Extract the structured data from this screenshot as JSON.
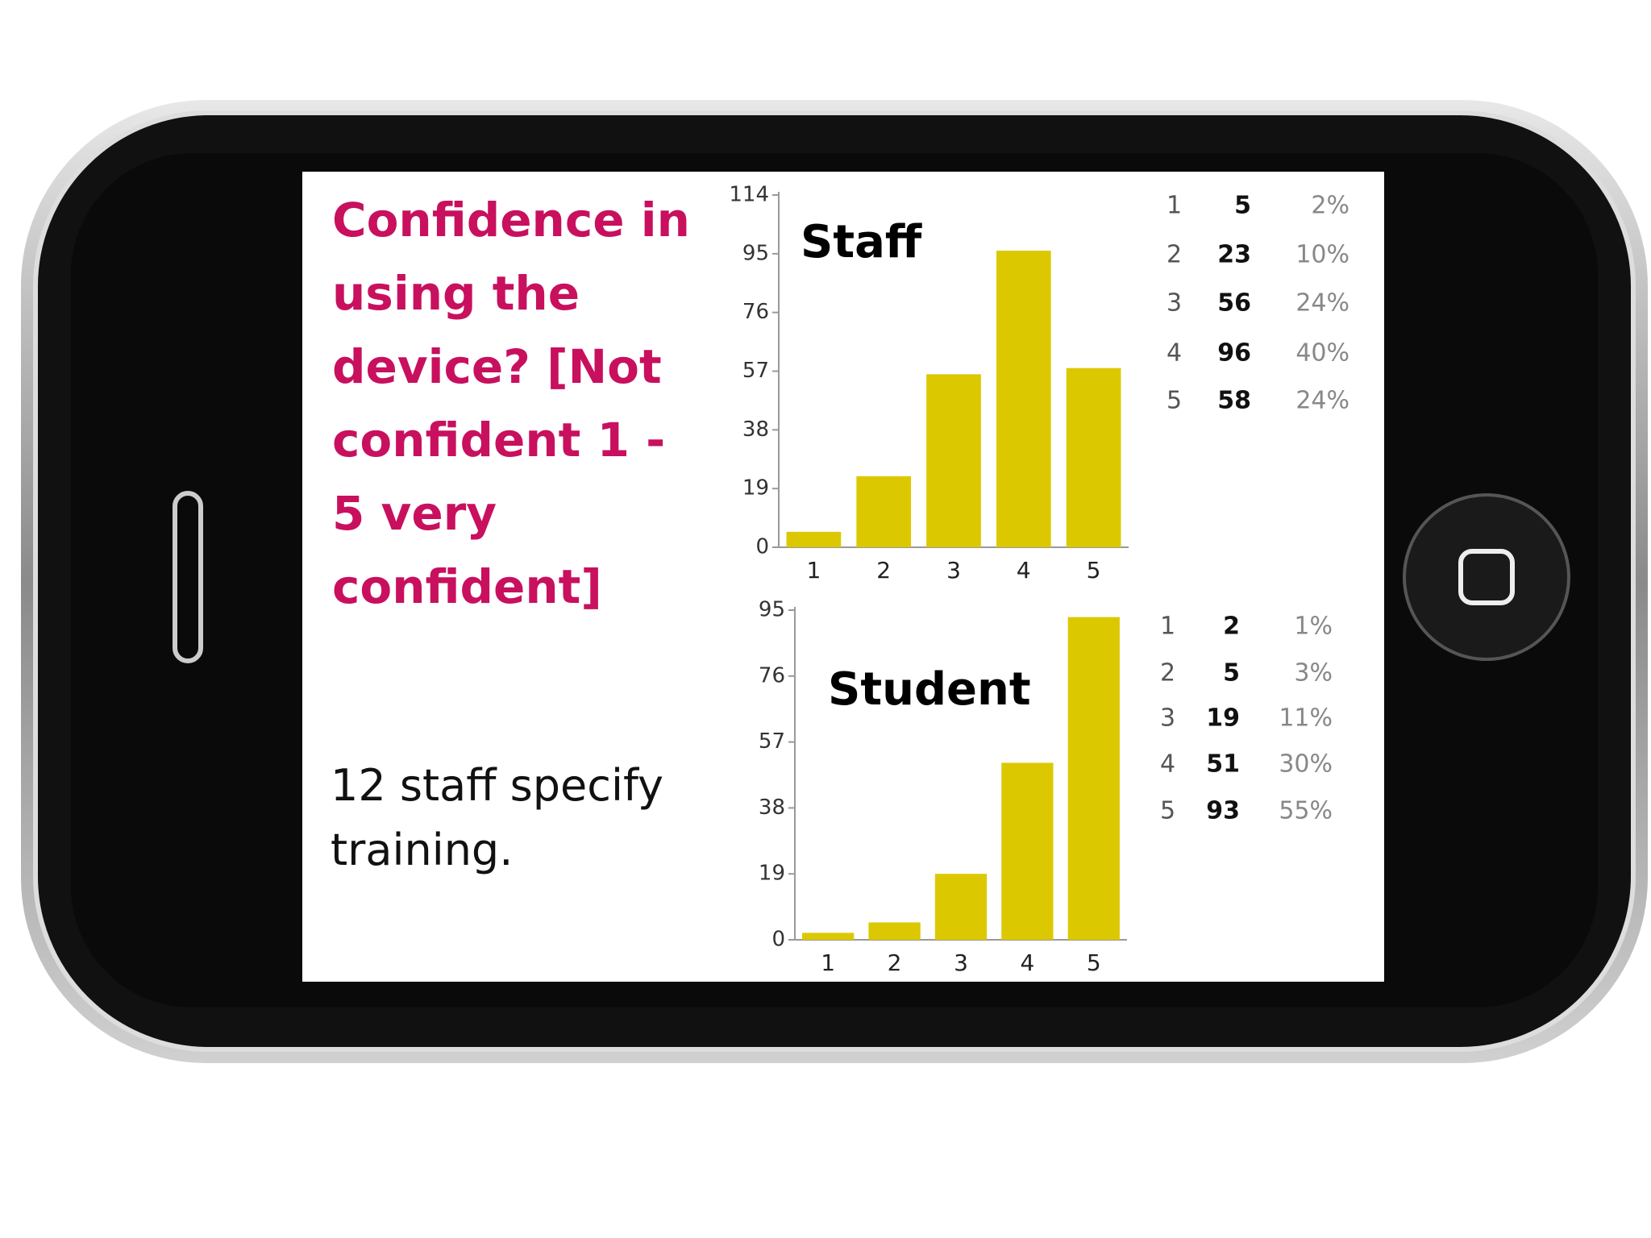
{
  "slide": {
    "title": "Confidence in using the device? [Not confident 1 - 5 very confident]",
    "note": "12 staff specify training."
  },
  "chart_data": [
    {
      "type": "bar",
      "title": "Staff",
      "categories": [
        "1",
        "2",
        "3",
        "4",
        "5"
      ],
      "values": [
        5,
        23,
        56,
        96,
        58
      ],
      "percent_labels": [
        "2%",
        "10%",
        "24%",
        "40%",
        "24%"
      ],
      "color": "#dcc800",
      "ylim": [
        0,
        114
      ],
      "yticks": [
        0,
        19,
        38,
        57,
        76,
        95,
        114
      ]
    },
    {
      "type": "bar",
      "title": "Student",
      "categories": [
        "1",
        "2",
        "3",
        "4",
        "5"
      ],
      "values": [
        2,
        5,
        19,
        51,
        93
      ],
      "percent_labels": [
        "1%",
        "3%",
        "11%",
        "30%",
        "55%"
      ],
      "color": "#dcc800",
      "ylim": [
        0,
        95
      ],
      "yticks": [
        0,
        19,
        38,
        57,
        76,
        95
      ]
    }
  ]
}
